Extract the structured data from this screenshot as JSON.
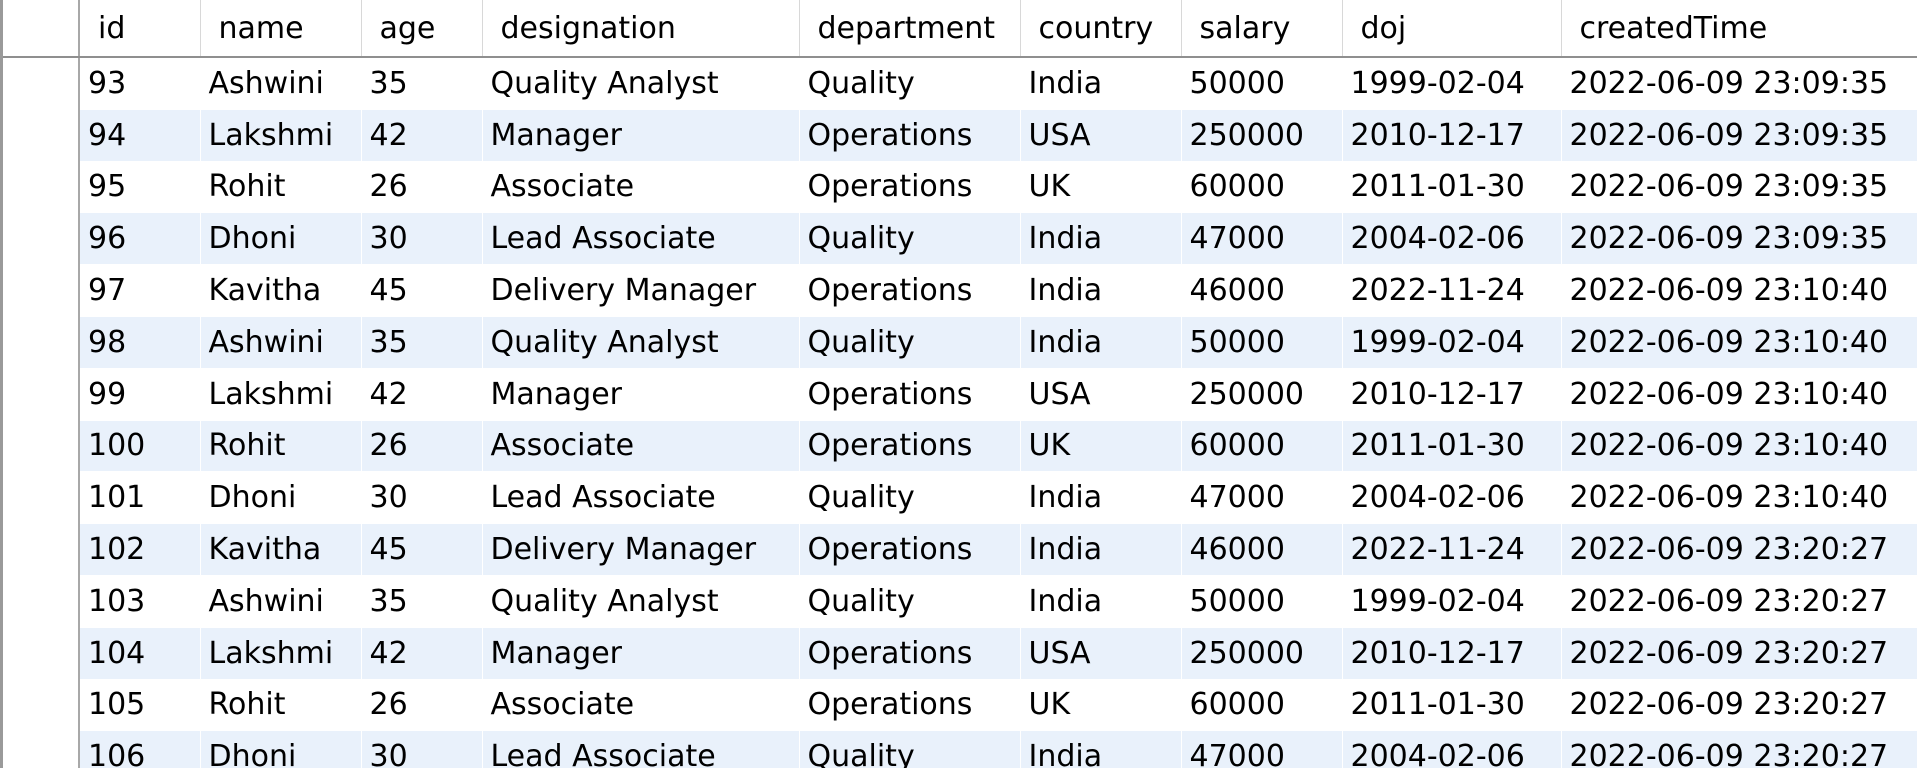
{
  "columns": [
    "id",
    "name",
    "age",
    "designation",
    "department",
    "country",
    "salary",
    "doj",
    "createdTime"
  ],
  "rows": [
    [
      "93",
      "Ashwini",
      "35",
      "Quality Analyst",
      "Quality",
      "India",
      "50000",
      "1999-02-04",
      "2022-06-09 23:09:35"
    ],
    [
      "94",
      "Lakshmi",
      "42",
      "Manager",
      "Operations",
      "USA",
      "250000",
      "2010-12-17",
      "2022-06-09 23:09:35"
    ],
    [
      "95",
      "Rohit",
      "26",
      "Associate",
      "Operations",
      "UK",
      "60000",
      "2011-01-30",
      "2022-06-09 23:09:35"
    ],
    [
      "96",
      "Dhoni",
      "30",
      "Lead Associate",
      "Quality",
      "India",
      "47000",
      "2004-02-06",
      "2022-06-09 23:09:35"
    ],
    [
      "97",
      "Kavitha",
      "45",
      "Delivery Manager",
      "Operations",
      "India",
      "46000",
      "2022-11-24",
      "2022-06-09 23:10:40"
    ],
    [
      "98",
      "Ashwini",
      "35",
      "Quality Analyst",
      "Quality",
      "India",
      "50000",
      "1999-02-04",
      "2022-06-09 23:10:40"
    ],
    [
      "99",
      "Lakshmi",
      "42",
      "Manager",
      "Operations",
      "USA",
      "250000",
      "2010-12-17",
      "2022-06-09 23:10:40"
    ],
    [
      "100",
      "Rohit",
      "26",
      "Associate",
      "Operations",
      "UK",
      "60000",
      "2011-01-30",
      "2022-06-09 23:10:40"
    ],
    [
      "101",
      "Dhoni",
      "30",
      "Lead Associate",
      "Quality",
      "India",
      "47000",
      "2004-02-06",
      "2022-06-09 23:10:40"
    ],
    [
      "102",
      "Kavitha",
      "45",
      "Delivery Manager",
      "Operations",
      "India",
      "46000",
      "2022-11-24",
      "2022-06-09 23:20:27"
    ],
    [
      "103",
      "Ashwini",
      "35",
      "Quality Analyst",
      "Quality",
      "India",
      "50000",
      "1999-02-04",
      "2022-06-09 23:20:27"
    ],
    [
      "104",
      "Lakshmi",
      "42",
      "Manager",
      "Operations",
      "USA",
      "250000",
      "2010-12-17",
      "2022-06-09 23:20:27"
    ],
    [
      "105",
      "Rohit",
      "26",
      "Associate",
      "Operations",
      "UK",
      "60000",
      "2011-01-30",
      "2022-06-09 23:20:27"
    ],
    [
      "106",
      "Dhoni",
      "30",
      "Lead Associate",
      "Quality",
      "India",
      "47000",
      "2004-02-06",
      "2022-06-09 23:20:27"
    ]
  ],
  "colors": {
    "row_alt": "#e9f1fb",
    "row": "#ffffff",
    "header_border": "#8f8f8f",
    "selector_border": "#a8a8a8"
  }
}
